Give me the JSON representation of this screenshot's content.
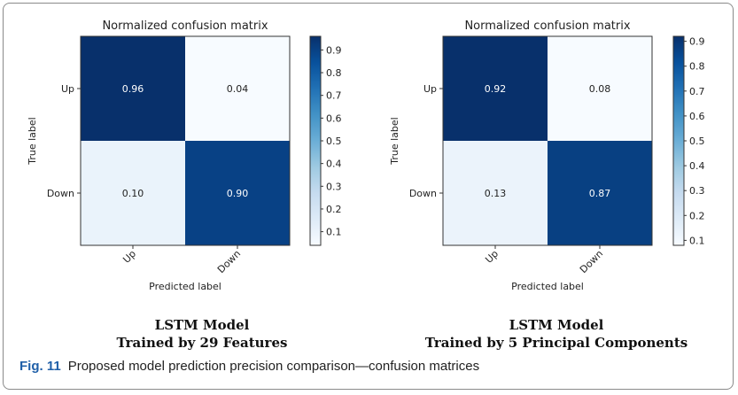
{
  "chart_data": [
    {
      "type": "heatmap",
      "title": "Normalized confusion matrix",
      "xlabel": "Predicted label",
      "ylabel": "True label",
      "row_labels": [
        "Up",
        "Down"
      ],
      "col_labels": [
        "Up",
        "Down"
      ],
      "values": [
        [
          0.96,
          0.04
        ],
        [
          0.1,
          0.9
        ]
      ],
      "cell_text": [
        [
          "0.96",
          "0.04"
        ],
        [
          "0.10",
          "0.90"
        ]
      ],
      "colormap": "Blues",
      "colorbar": {
        "min": 0.04,
        "max": 0.96,
        "ticks": [
          "0.1",
          "0.2",
          "0.3",
          "0.4",
          "0.5",
          "0.6",
          "0.7",
          "0.8",
          "0.9"
        ]
      },
      "caption_lines": [
        "LSTM Model",
        "Trained by 29 Features"
      ]
    },
    {
      "type": "heatmap",
      "title": "Normalized confusion matrix",
      "xlabel": "Predicted label",
      "ylabel": "True label",
      "row_labels": [
        "Up",
        "Down"
      ],
      "col_labels": [
        "Up",
        "Down"
      ],
      "values": [
        [
          0.92,
          0.08
        ],
        [
          0.13,
          0.87
        ]
      ],
      "cell_text": [
        [
          "0.92",
          "0.08"
        ],
        [
          "0.13",
          "0.87"
        ]
      ],
      "colormap": "Blues",
      "colorbar": {
        "min": 0.08,
        "max": 0.92,
        "ticks": [
          "0.1",
          "0.2",
          "0.3",
          "0.4",
          "0.5",
          "0.6",
          "0.7",
          "0.8",
          "0.9"
        ]
      },
      "caption_lines": [
        "LSTM Model",
        "Trained by 5 Principal Components"
      ]
    }
  ],
  "figure": {
    "number": "Fig. 11",
    "caption": "Proposed model prediction precision comparison—confusion matrices"
  },
  "colors": {
    "dark_blue": "#08306b",
    "light_blue": "#f7fbff",
    "frame": "#8a8a8a",
    "fig_number": "#1f5fa8"
  }
}
